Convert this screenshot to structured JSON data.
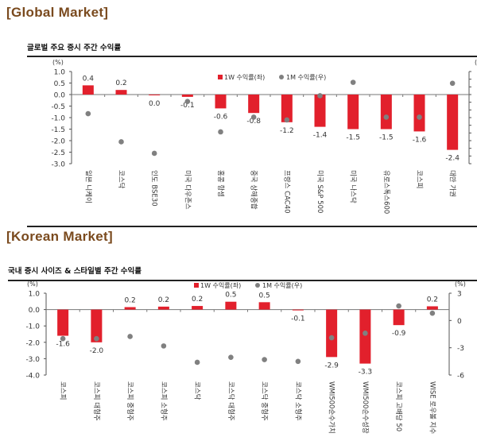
{
  "sections": {
    "global": "[Global Market]",
    "korean": "[Korean Market]"
  },
  "chart_data": [
    {
      "type": "bar",
      "title": "글로벌 주요 증시 주간 수익률",
      "ylabel_left": "(%)",
      "ylabel_right": "(%)",
      "legend": [
        "1W 수익률(좌)",
        "1M 수익률(우)"
      ],
      "legend_position": "top",
      "colors": {
        "bar": "#e2202c",
        "dot": "#808080"
      },
      "ylim_left": [
        -3.0,
        1.0
      ],
      "yticks_left": [
        "1.0",
        "0.5",
        "0.0",
        "-0.5",
        "-1.0",
        "-1.5",
        "-2.0",
        "-2.5",
        "-3.0"
      ],
      "categories": [
        "일본 니케이",
        "코스닥",
        "인도 BSE30",
        "미국 다우존스",
        "홍콩 항셍",
        "중국 상해종합",
        "프랑스 CAC40",
        "미국 S&P 500",
        "미국 나스닥",
        "유로스톡스600",
        "코스피",
        "대만 가권"
      ],
      "series": [
        {
          "name": "1W 수익률(좌)",
          "type": "bar",
          "values": [
            0.4,
            0.2,
            0.0,
            -0.1,
            -0.6,
            -0.8,
            -1.2,
            -1.4,
            -1.5,
            -1.5,
            -1.6,
            -2.4
          ],
          "labels": [
            "0.4",
            "0.2",
            "0.0",
            "-0.1",
            "-0.6",
            "-0.8",
            "-1.2",
            "-1.4",
            "-1.5",
            "-1.5",
            "-1.6",
            "-2.4"
          ]
        },
        {
          "name": "1M 수익률(우)",
          "type": "scatter",
          "values_on_left_scale": [
            -0.83,
            -2.05,
            -2.55,
            -0.3,
            -1.62,
            -0.98,
            -1.1,
            -0.05,
            0.53,
            -0.98,
            -0.98,
            0.49
          ]
        }
      ]
    },
    {
      "type": "bar",
      "title": "국내 증시 사이즈 & 스타일별 주간 수익률",
      "ylabel_left": "(%)",
      "ylabel_right": "(%)",
      "legend": [
        "1W 수익률(좌)",
        "1M 수익률(우)"
      ],
      "legend_position": "top",
      "colors": {
        "bar": "#e2202c",
        "dot": "#808080"
      },
      "ylim_left": [
        -4.0,
        1.0
      ],
      "yticks_left": [
        "1.0",
        "0.0",
        "-1.0",
        "-2.0",
        "-3.0",
        "-4.0"
      ],
      "ylim_right": [
        -6,
        3
      ],
      "yticks_right": [
        "3",
        "0",
        "-3",
        "-6"
      ],
      "categories": [
        "코스피",
        "코스피 대형주",
        "코스피 중형주",
        "코스피 소형주",
        "코스닥",
        "코스닥 대형주",
        "코스닥 중형주",
        "코스닥 소형주",
        "WMI500순수가치",
        "WMI500순수성장",
        "코스피 고배당 50",
        "WISE 로우볼 지수"
      ],
      "series": [
        {
          "name": "1W 수익률(좌)",
          "type": "bar",
          "values": [
            -1.6,
            -2.0,
            0.15,
            0.18,
            0.22,
            0.48,
            0.45,
            -0.05,
            -2.9,
            -3.3,
            -0.95,
            0.2
          ],
          "labels": [
            "-1.6",
            "-2.0",
            "0.2",
            "0.2",
            "0.2",
            "0.5",
            "0.5",
            "-0.1",
            "-2.9",
            "-3.3",
            "-0.9",
            "0.2"
          ]
        },
        {
          "name": "1M 수익률(우)",
          "type": "scatter",
          "values": [
            -2.0,
            -2.0,
            -1.76,
            -2.8,
            -4.6,
            -4.05,
            -4.3,
            -4.5,
            -1.9,
            -1.4,
            1.6,
            0.8
          ]
        }
      ]
    }
  ]
}
